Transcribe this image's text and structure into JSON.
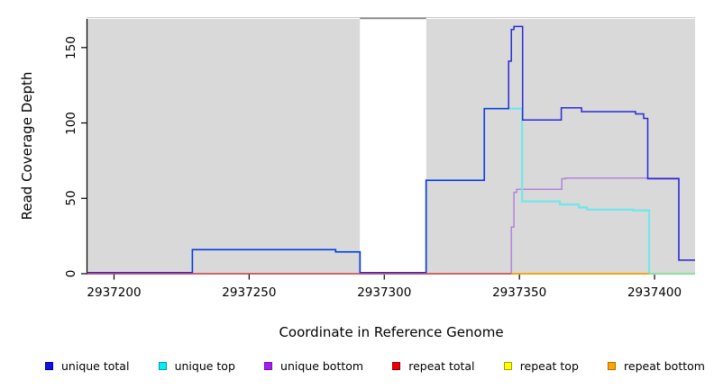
{
  "figure": {
    "background": "#ffffff",
    "plot_background": "#d9d9d9",
    "gap_background": "#ffffff",
    "axis_color": "#000000",
    "plot_top_border_color": "#c9c9c9",
    "gap_top_line_color": "#8a8a8a"
  },
  "chart_data": {
    "type": "line",
    "subtype": "step-function-coverage",
    "title": "",
    "xlabel": "Coordinate in Reference Genome",
    "ylabel": "Read Coverage Depth",
    "xlim": [
      2937190,
      2937415
    ],
    "ylim": [
      0,
      169
    ],
    "xticks": [
      2937200,
      2937250,
      2937300,
      2937350,
      2937400
    ],
    "yticks": [
      0,
      50,
      100,
      150
    ],
    "grid": false,
    "legend_position": "bottom",
    "shaded_regions": [
      {
        "from": 2937190,
        "to": 2937291,
        "color": "#d9d9d9"
      },
      {
        "from": 2937315.5,
        "to": 2937415,
        "color": "#d9d9d9"
      }
    ],
    "gap_region": {
      "from": 2937291,
      "to": 2937315.5,
      "color": "#ffffff"
    },
    "draw_order": [
      2,
      1,
      0,
      3,
      4,
      5
    ],
    "series": [
      {
        "name": "unique total",
        "line_color": "#2a2ad8",
        "line_width": 1.5,
        "legend_fill": "#1212e0",
        "legend_border": "#0000a0",
        "steps": [
          [
            2937190,
            0.8
          ],
          [
            2937229,
            16
          ],
          [
            2937282,
            14.5
          ],
          [
            2937291,
            0.8
          ],
          [
            2937315.5,
            62
          ],
          [
            2937337,
            109.5
          ],
          [
            2937346,
            141
          ],
          [
            2937347,
            162
          ],
          [
            2937348,
            164
          ],
          [
            2937351.2,
            102
          ],
          [
            2937365.5,
            110
          ],
          [
            2937373,
            107.5
          ],
          [
            2937393,
            106
          ],
          [
            2937396,
            103
          ],
          [
            2937397.5,
            63
          ],
          [
            2937409,
            9
          ],
          [
            2937415,
            9
          ]
        ]
      },
      {
        "name": "unique top",
        "line_color": "#74e6ea",
        "line_width": 2.3,
        "legend_fill": "#00f0f4",
        "legend_border": "#0099aa",
        "steps": [
          [
            2937229,
            0
          ],
          [
            2937229,
            16
          ],
          [
            2937282,
            14.5
          ],
          [
            2937291,
            0
          ],
          [
            2937315.5,
            62
          ],
          [
            2937337,
            109.5
          ],
          [
            2937351,
            48
          ],
          [
            2937365,
            46
          ],
          [
            2937372,
            44
          ],
          [
            2937375,
            42.5
          ],
          [
            2937392,
            42
          ],
          [
            2937398,
            0
          ],
          [
            2937415,
            0
          ]
        ]
      },
      {
        "name": "unique bottom",
        "line_color": "#b284dc",
        "line_width": 1.5,
        "legend_fill": "#a51ef0",
        "legend_border": "#7a10b4",
        "steps": [
          [
            2937346.7,
            0
          ],
          [
            2937347,
            31
          ],
          [
            2937348,
            54
          ],
          [
            2937349,
            56
          ],
          [
            2937365.7,
            63
          ],
          [
            2937367,
            63.5
          ],
          [
            2937409,
            63.5
          ],
          [
            2937409,
            9
          ],
          [
            2937415,
            9
          ]
        ]
      },
      {
        "name": "repeat total",
        "line_color": "#dc4a52",
        "line_width": 1.5,
        "legend_fill": "#ee0000",
        "legend_border": "#990000",
        "steps": [
          [
            2937190,
            0
          ],
          [
            2937347,
            0
          ]
        ]
      },
      {
        "name": "repeat top",
        "line_color": "#ffff00",
        "line_width": 1.5,
        "legend_fill": "#ffff00",
        "legend_border": "#a0a000",
        "steps": []
      },
      {
        "name": "repeat bottom",
        "line_color": "#ffa500",
        "line_width": 1.7,
        "legend_fill": "#ffa500",
        "legend_border": "#b06f00",
        "steps": [
          [
            2937347,
            0
          ],
          [
            2937398,
            0
          ]
        ]
      }
    ],
    "baseline_blend_segment": {
      "from": 2937398,
      "to": 2937415,
      "value": 0,
      "color": "#98dc98",
      "line_width": 1.7
    }
  }
}
